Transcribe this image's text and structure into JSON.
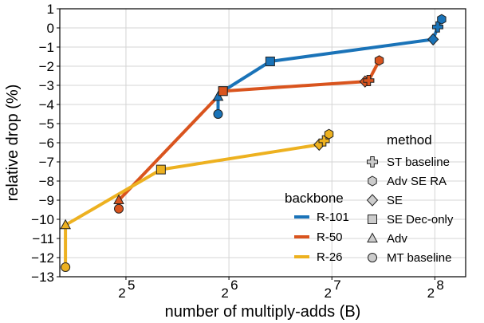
{
  "chart_data": {
    "type": "line",
    "xlabel": "number of multiply-adds (B)",
    "ylabel": "relative drop (%)",
    "x_scale": "log2",
    "x_ticks": [
      {
        "value": 32,
        "base": "2",
        "exp": "5"
      },
      {
        "value": 64,
        "base": "2",
        "exp": "6"
      },
      {
        "value": 128,
        "base": "2",
        "exp": "7"
      },
      {
        "value": 256,
        "base": "2",
        "exp": "8"
      }
    ],
    "xlim": [
      20.5,
      315
    ],
    "ylim": [
      -13,
      1
    ],
    "y_ticks": [
      "1",
      "0",
      "-1",
      "-2",
      "-3",
      "-4",
      "-5",
      "-6",
      "-7",
      "-8",
      "-9",
      "-10",
      "-11",
      "-12",
      "-13"
    ],
    "grid": true,
    "legend_backbone": {
      "title": "backbone",
      "placement": "center-right"
    },
    "legend_method": {
      "title": "method",
      "placement": "right",
      "entries": [
        {
          "label": "ST baseline",
          "marker": "plus"
        },
        {
          "label": "Adv SE RA",
          "marker": "hexagon"
        },
        {
          "label": "SE",
          "marker": "diamond"
        },
        {
          "label": "SE Dec-only",
          "marker": "square"
        },
        {
          "label": "Adv",
          "marker": "triangle"
        },
        {
          "label": "MT baseline",
          "marker": "circle"
        }
      ]
    },
    "series": [
      {
        "name": "R-101",
        "color": "#1a73b8",
        "points": [
          {
            "method": "MT baseline",
            "x": 59.5,
            "y": -4.5
          },
          {
            "method": "Adv",
            "x": 59.5,
            "y": -3.6
          },
          {
            "method": "SE Dec-only",
            "x": 61.5,
            "y": -3.3
          },
          {
            "method": "SE Dec-only",
            "x": 84.5,
            "y": -1.75
          },
          {
            "method": "SE",
            "x": 253,
            "y": -0.6
          },
          {
            "method": "ST baseline",
            "x": 261,
            "y": 0.05
          },
          {
            "method": "Adv SE RA",
            "x": 268,
            "y": 0.45
          }
        ]
      },
      {
        "name": "R-50",
        "color": "#d9541e",
        "points": [
          {
            "method": "MT baseline",
            "x": 30.5,
            "y": -9.45
          },
          {
            "method": "Adv",
            "x": 30.5,
            "y": -9.0
          },
          {
            "method": "SE Dec-only",
            "x": 61.5,
            "y": -3.3
          },
          {
            "method": "SE",
            "x": 160,
            "y": -2.8
          },
          {
            "method": "ST baseline",
            "x": 164,
            "y": -2.75
          },
          {
            "method": "Adv SE RA",
            "x": 176,
            "y": -1.7
          }
        ]
      },
      {
        "name": "R-26",
        "color": "#edb120",
        "points": [
          {
            "method": "MT baseline",
            "x": 21.3,
            "y": -12.5
          },
          {
            "method": "Adv",
            "x": 21.3,
            "y": -10.3
          },
          {
            "method": "SE Dec-only",
            "x": 40.5,
            "y": -7.4
          },
          {
            "method": "SE",
            "x": 117.5,
            "y": -6.1
          },
          {
            "method": "ST baseline",
            "x": 121.5,
            "y": -5.9
          },
          {
            "method": "Adv SE RA",
            "x": 125.5,
            "y": -5.55
          }
        ]
      }
    ]
  }
}
